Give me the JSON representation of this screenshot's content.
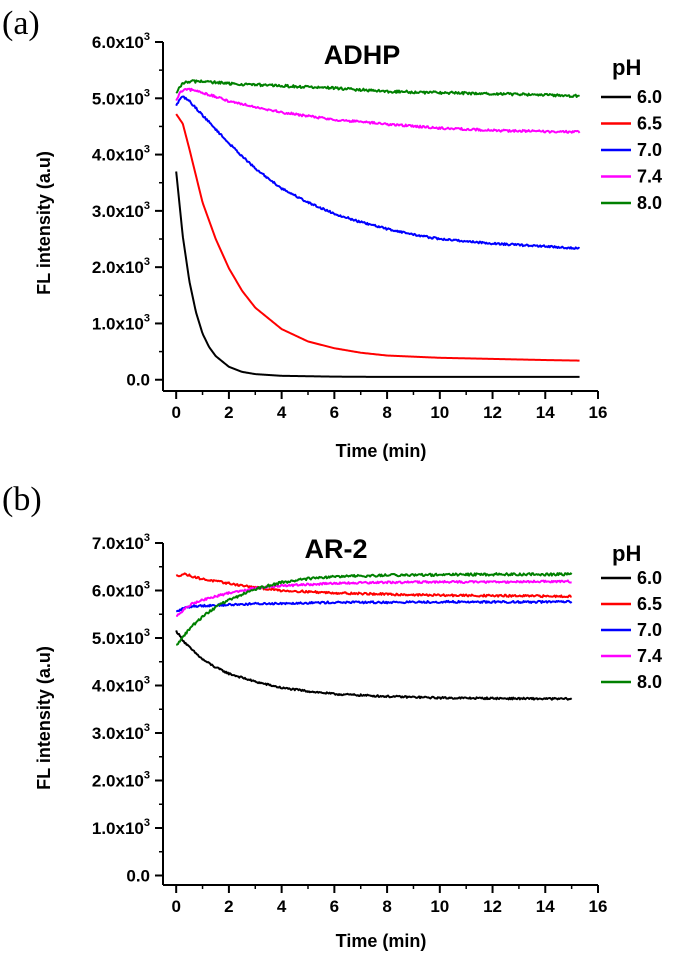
{
  "chart_data": [
    {
      "panel": "(a)",
      "type": "line",
      "title": "ADHP",
      "xlabel": "Time (min)",
      "ylabel": "FL intensity (a.u)",
      "xlim": [
        -0.5,
        16
      ],
      "ylim": [
        -200,
        6000
      ],
      "xticks": [
        0,
        2,
        4,
        6,
        8,
        10,
        12,
        14,
        16
      ],
      "yticks": [
        {
          "value": 0,
          "label": "0.0"
        },
        {
          "value": 1000,
          "label": "1.0x10",
          "exp": "3"
        },
        {
          "value": 2000,
          "label": "2.0x10",
          "exp": "3"
        },
        {
          "value": 3000,
          "label": "3.0x10",
          "exp": "3"
        },
        {
          "value": 4000,
          "label": "4.0x10",
          "exp": "3"
        },
        {
          "value": 5000,
          "label": "5.0x10",
          "exp": "3"
        },
        {
          "value": 6000,
          "label": "6.0x10",
          "exp": "3"
        }
      ],
      "legend_title": "pH",
      "series": [
        {
          "name": "6.0",
          "color": "#000000",
          "noise": 0,
          "x": [
            0,
            0.25,
            0.5,
            0.75,
            1,
            1.25,
            1.5,
            2,
            2.5,
            3,
            4,
            6,
            8,
            10,
            12,
            14,
            15.3
          ],
          "values": [
            3700,
            2550,
            1750,
            1200,
            820,
            580,
            420,
            230,
            140,
            100,
            70,
            55,
            50,
            50,
            50,
            50,
            50
          ]
        },
        {
          "name": "6.5",
          "color": "#ff0000",
          "noise": 0,
          "x": [
            0,
            0.25,
            0.5,
            1,
            1.5,
            2,
            2.5,
            3,
            4,
            5,
            6,
            7,
            8,
            10,
            12,
            14,
            15.3
          ],
          "values": [
            4720,
            4550,
            4100,
            3150,
            2500,
            1980,
            1580,
            1280,
            900,
            680,
            560,
            480,
            430,
            390,
            370,
            350,
            340
          ]
        },
        {
          "name": "7.0",
          "color": "#0000ff",
          "noise": 18,
          "x": [
            0,
            0.15,
            0.3,
            0.5,
            1,
            2,
            3,
            4,
            5,
            6,
            7,
            8,
            9,
            10,
            12,
            14,
            15.3
          ],
          "values": [
            4860,
            5000,
            5020,
            4950,
            4700,
            4200,
            3750,
            3400,
            3150,
            2950,
            2800,
            2680,
            2580,
            2500,
            2420,
            2370,
            2330
          ]
        },
        {
          "name": "7.4",
          "color": "#ff00ff",
          "noise": 20,
          "x": [
            0,
            0.15,
            0.3,
            0.6,
            1,
            2,
            3,
            4,
            6,
            8,
            10,
            12,
            14,
            15.3
          ],
          "values": [
            4950,
            5100,
            5150,
            5150,
            5100,
            4950,
            4850,
            4750,
            4620,
            4540,
            4470,
            4430,
            4410,
            4400
          ]
        },
        {
          "name": "8.0",
          "color": "#008000",
          "noise": 24,
          "x": [
            0,
            0.2,
            0.5,
            1,
            2,
            4,
            6,
            8,
            10,
            12,
            14,
            15.3
          ],
          "values": [
            5080,
            5250,
            5300,
            5300,
            5260,
            5220,
            5180,
            5120,
            5100,
            5080,
            5060,
            5040
          ]
        }
      ]
    },
    {
      "panel": "(b)",
      "type": "line",
      "title": "AR-2",
      "xlabel": "Time (min)",
      "ylabel": "FL intensity (a.u)",
      "xlim": [
        -0.5,
        16
      ],
      "ylim": [
        -200,
        7000
      ],
      "xticks": [
        0,
        2,
        4,
        6,
        8,
        10,
        12,
        14,
        16
      ],
      "yticks": [
        {
          "value": 0,
          "label": "0.0"
        },
        {
          "value": 1000,
          "label": "1.0x10",
          "exp": "3"
        },
        {
          "value": 2000,
          "label": "2.0x10",
          "exp": "3"
        },
        {
          "value": 3000,
          "label": "3.0x10",
          "exp": "3"
        },
        {
          "value": 4000,
          "label": "4.0x10",
          "exp": "3"
        },
        {
          "value": 5000,
          "label": "5.0x10",
          "exp": "3"
        },
        {
          "value": 6000,
          "label": "6.0x10",
          "exp": "3"
        },
        {
          "value": 7000,
          "label": "7.0x10",
          "exp": "3"
        }
      ],
      "legend_title": "pH",
      "series": [
        {
          "name": "6.0",
          "color": "#000000",
          "noise": 20,
          "x": [
            0,
            0.3,
            0.6,
            1,
            1.5,
            2,
            3,
            4,
            5,
            6,
            8,
            10,
            12,
            14,
            15
          ],
          "values": [
            5150,
            4920,
            4750,
            4550,
            4380,
            4250,
            4080,
            3950,
            3880,
            3820,
            3770,
            3740,
            3730,
            3720,
            3720
          ]
        },
        {
          "name": "6.5",
          "color": "#ff0000",
          "noise": 22,
          "x": [
            0,
            0.3,
            0.6,
            1,
            2,
            3,
            4,
            6,
            8,
            10,
            12,
            14,
            15
          ],
          "values": [
            6300,
            6350,
            6300,
            6240,
            6150,
            6060,
            6000,
            5950,
            5920,
            5900,
            5890,
            5880,
            5880
          ]
        },
        {
          "name": "7.0",
          "color": "#0000ff",
          "noise": 22,
          "x": [
            0,
            0.3,
            0.6,
            1,
            2,
            3,
            4,
            6,
            8,
            10,
            12,
            14,
            15
          ],
          "values": [
            5550,
            5630,
            5670,
            5680,
            5700,
            5720,
            5730,
            5750,
            5750,
            5760,
            5760,
            5760,
            5760
          ]
        },
        {
          "name": "7.4",
          "color": "#ff00ff",
          "noise": 22,
          "x": [
            0,
            0.3,
            0.6,
            1,
            2,
            3,
            4,
            6,
            8,
            10,
            12,
            14,
            15
          ],
          "values": [
            5450,
            5600,
            5720,
            5800,
            5950,
            6050,
            6100,
            6150,
            6170,
            6180,
            6180,
            6190,
            6190
          ]
        },
        {
          "name": "8.0",
          "color": "#008000",
          "noise": 26,
          "x": [
            0,
            0.3,
            0.6,
            1,
            1.5,
            2,
            3,
            4,
            5,
            6,
            8,
            10,
            12,
            14,
            15
          ],
          "values": [
            4850,
            5050,
            5250,
            5450,
            5650,
            5800,
            6030,
            6170,
            6250,
            6290,
            6320,
            6330,
            6340,
            6340,
            6340
          ]
        }
      ]
    }
  ]
}
